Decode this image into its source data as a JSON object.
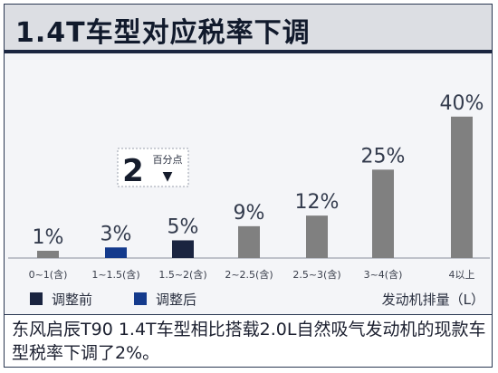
{
  "title": "1.4T车型对应税率下调",
  "chart_data": {
    "type": "bar",
    "categories": [
      "0~1(含)",
      "1~1.5(含)",
      "1.5~2(含)",
      "2~2.5(含)",
      "2.5~3(含)",
      "3~4(含)",
      "4以上"
    ],
    "values": [
      1,
      3,
      5,
      9,
      12,
      25,
      40
    ],
    "value_labels": [
      "1%",
      "3%",
      "5%",
      "9%",
      "12%",
      "25%",
      "40%"
    ],
    "xlabel": "发动机排量（L）",
    "ylim": [
      0,
      42
    ],
    "highlight": [
      {
        "index": 1,
        "series": "调整后",
        "color": "#143a8c"
      },
      {
        "index": 2,
        "series": "调整前",
        "color": "#1a2440"
      }
    ],
    "default_color": "#808080",
    "legend": [
      {
        "label": "调整前",
        "color": "#1a2440"
      },
      {
        "label": "调整后",
        "color": "#143a8c"
      }
    ],
    "legend_position": "bottom-left",
    "annotation": {
      "number": "2",
      "text": "百分点",
      "arrow": "▼"
    }
  },
  "caption": "东风启辰T90 1.4T车型相比搭载2.0L自然吸气发动机的现款车型税率下调了2%。"
}
